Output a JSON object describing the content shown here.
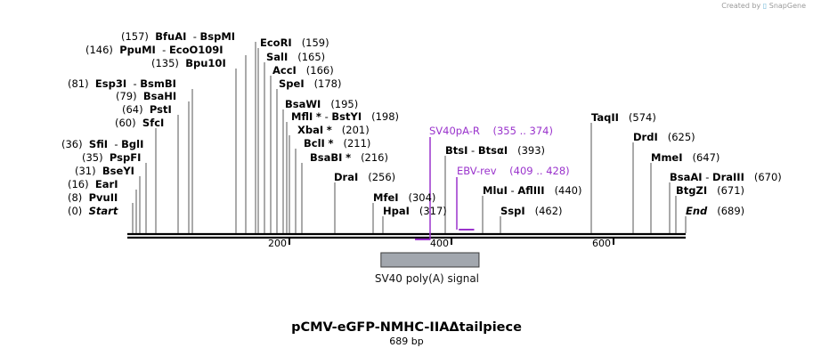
{
  "credit": {
    "prefix": "Created by",
    "brand": "SnapGene"
  },
  "title": "pCMV-eGFP-NMHC-IIAΔtailpiece",
  "length_label": "689 bp",
  "sequence_length": 689,
  "axis": {
    "ticks": [
      "200",
      "400",
      "600"
    ]
  },
  "colors": {
    "backbone": "#000000",
    "feature": "#a2a7ae",
    "primer": "#9a33cc",
    "leader": "#555555"
  },
  "sites": [
    {
      "id": "pvuii",
      "pos": "(0)",
      "name": "Start",
      "bp": 0,
      "style": "italic",
      "position_first": true
    },
    {
      "id": "pvuii2",
      "pos": "(8)",
      "name": "PvuII",
      "bp": 8,
      "position_first": true
    },
    {
      "id": "eari",
      "pos": "(16)",
      "name": "EarI",
      "bp": 16,
      "position_first": true
    },
    {
      "id": "bseyi",
      "pos": "(31)",
      "name": "BseYI",
      "bp": 31,
      "position_first": true
    },
    {
      "id": "pspfi",
      "pos": "(35)",
      "name": "PspFI",
      "bp": 35,
      "position_first": true
    },
    {
      "id": "sfii",
      "pos": "(36)",
      "name": "SfiI",
      "name2": "BglI",
      "bp": 36,
      "position_first": true
    },
    {
      "id": "sfci",
      "pos": "(60)",
      "name": "SfcI",
      "bp": 60,
      "position_first": true
    },
    {
      "id": "psti",
      "pos": "(64)",
      "name": "PstI",
      "bp": 64,
      "position_first": true
    },
    {
      "id": "bsahi",
      "pos": "(79)",
      "name": "BsaHI",
      "bp": 79,
      "position_first": true
    },
    {
      "id": "esp3i",
      "pos": "(81)",
      "name": "Esp3I",
      "name2": "BsmBI",
      "bp": 81,
      "position_first": true
    },
    {
      "id": "bpu10i",
      "pos": "(135)",
      "name": "Bpu10I",
      "bp": 135,
      "position_first": true
    },
    {
      "id": "ppumi",
      "pos": "(146)",
      "name": "PpuMI",
      "name2": "EcoO109I",
      "bp": 146,
      "position_first": true
    },
    {
      "id": "bfuai",
      "pos": "(157)",
      "name": "BfuAI",
      "name2": "BspMI",
      "bp": 157,
      "position_first": true
    },
    {
      "id": "ecori",
      "pos": "(159)",
      "name": "EcoRI",
      "bp": 159
    },
    {
      "id": "sali",
      "pos": "(165)",
      "name": "SalI",
      "bp": 165
    },
    {
      "id": "acci",
      "pos": "(166)",
      "name": "AccI",
      "bp": 166
    },
    {
      "id": "spei",
      "pos": "(178)",
      "name": "SpeI",
      "bp": 178
    },
    {
      "id": "bsawi",
      "pos": "(195)",
      "name": "BsaWI",
      "bp": 195
    },
    {
      "id": "mfli",
      "pos": "(198)",
      "name": "MflI",
      "name2": "BstYI",
      "star": "*",
      "bp": 198
    },
    {
      "id": "xbai",
      "pos": "(201)",
      "name": "XbaI",
      "star": "*",
      "bp": 201
    },
    {
      "id": "bcli",
      "pos": "(211)",
      "name": "BclI",
      "star": "*",
      "bp": 211
    },
    {
      "id": "bsabi",
      "pos": "(216)",
      "name": "BsaBI",
      "star": "*",
      "bp": 216
    },
    {
      "id": "drai",
      "pos": "(256)",
      "name": "DraI",
      "bp": 256
    },
    {
      "id": "mfei",
      "pos": "(304)",
      "name": "MfeI",
      "bp": 304
    },
    {
      "id": "hpai",
      "pos": "(317)",
      "name": "HpaI",
      "bp": 317
    },
    {
      "id": "btsi",
      "pos": "(393)",
      "name": "BtsI",
      "name2": "BtsαI",
      "bp": 393
    },
    {
      "id": "mlui",
      "pos": "(440)",
      "name": "MluI",
      "name2": "AflIII",
      "bp": 440
    },
    {
      "id": "sspi",
      "pos": "(462)",
      "name": "SspI",
      "bp": 462
    },
    {
      "id": "taqii",
      "pos": "(574)",
      "name": "TaqII",
      "bp": 574
    },
    {
      "id": "drdi",
      "pos": "(625)",
      "name": "DrdI",
      "bp": 625
    },
    {
      "id": "mmei",
      "pos": "(647)",
      "name": "MmeI",
      "bp": 647
    },
    {
      "id": "bsaai",
      "pos": "(670)",
      "name": "BsaAI",
      "name2": "DraIII",
      "bp": 670
    },
    {
      "id": "btgzi",
      "pos": "(671)",
      "name": "BtgZI",
      "bp": 671
    },
    {
      "id": "end",
      "pos": "(689)",
      "name": "End",
      "bp": 689,
      "style": "italic"
    }
  ],
  "primers": [
    {
      "id": "sv40pa-r",
      "name": "SV40pA-R",
      "range": "(355 .. 374)",
      "start": 355,
      "end": 374,
      "direction": "reverse"
    },
    {
      "id": "ebv-rev",
      "name": "EBV-rev",
      "range": "(409 .. 428)",
      "start": 409,
      "end": 428,
      "direction": "reverse"
    }
  ],
  "features": [
    {
      "id": "sv40-polya",
      "name": "SV40 poly(A) signal",
      "start": 313,
      "end": 434
    }
  ]
}
